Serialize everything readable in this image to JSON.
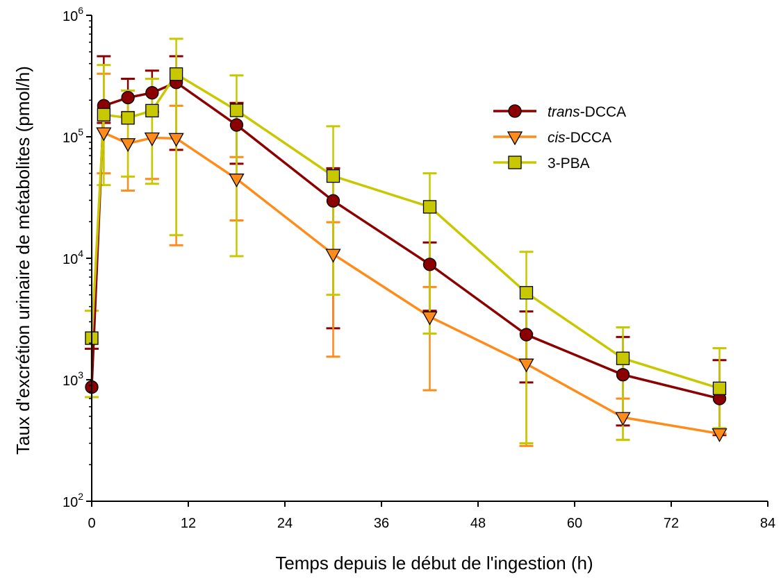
{
  "chart_data": {
    "type": "line",
    "title": "",
    "xlabel": "Temps depuis le début de l'ingestion (h)",
    "ylabel": "Taux d'excrétion urinaire de métabolites (pmol/h)",
    "x_ticks": [
      0,
      12,
      24,
      36,
      48,
      60,
      72,
      84
    ],
    "y_scale": "log",
    "y_ticks": [
      100,
      1000,
      10000,
      100000,
      1000000
    ],
    "y_tick_labels": [
      {
        "base": "10",
        "exp": "2"
      },
      {
        "base": "10",
        "exp": "3"
      },
      {
        "base": "10",
        "exp": "4"
      },
      {
        "base": "10",
        "exp": "5"
      },
      {
        "base": "10",
        "exp": "6"
      }
    ],
    "xlim": [
      0,
      84
    ],
    "ylim": [
      100,
      1000000
    ],
    "grid": false,
    "legend_position": "top-right",
    "series": [
      {
        "name_italic": "trans",
        "name_rest": "-DCCA",
        "color": "#8b0000",
        "marker": "circle",
        "x": [
          0,
          1.5,
          4.5,
          7.5,
          10.5,
          18,
          30,
          42,
          54,
          66,
          78
        ],
        "y": [
          870,
          180000,
          210000,
          230000,
          280000,
          125000,
          29700,
          8900,
          2350,
          1100,
          700
        ],
        "err_low": [
          null,
          130000,
          150000,
          160000,
          78000,
          60000,
          2650,
          3700,
          950,
          420,
          350
        ],
        "err_high": [
          1800,
          460000,
          300000,
          350000,
          460000,
          190000,
          55000,
          13500,
          3650,
          2250,
          1450
        ]
      },
      {
        "name_italic": "cis",
        "name_rest": "-DCCA",
        "color": "#ff8c1a",
        "marker": "triangle-down",
        "x": [
          0,
          1.5,
          4.5,
          7.5,
          10.5,
          18,
          30,
          42,
          54,
          66,
          78
        ],
        "y": [
          null,
          108000,
          88000,
          98000,
          97000,
          45000,
          10800,
          3300,
          1350,
          490,
          360
        ],
        "err_low": [
          null,
          50000,
          36000,
          45000,
          12800,
          20500,
          1550,
          820,
          285,
          320,
          360
        ],
        "err_high": [
          null,
          330000,
          160000,
          160000,
          180000,
          68000,
          19800,
          5800,
          2400,
          700,
          360
        ]
      },
      {
        "name_italic": "",
        "name_rest": "3-PBA",
        "color": "#c8c800",
        "marker": "square",
        "x": [
          0,
          1.5,
          4.5,
          7.5,
          10.5,
          18,
          30,
          42,
          54,
          66,
          78
        ],
        "y": [
          2200,
          152000,
          143000,
          164000,
          328000,
          165000,
          47500,
          26500,
          5200,
          1500,
          850
        ],
        "err_low": [
          720,
          40000,
          47000,
          41000,
          15500,
          10400,
          5000,
          2400,
          300,
          320,
          400
        ],
        "err_high": [
          3700,
          390000,
          240000,
          300000,
          640000,
          320000,
          122000,
          50000,
          11300,
          2700,
          1820
        ]
      }
    ]
  }
}
